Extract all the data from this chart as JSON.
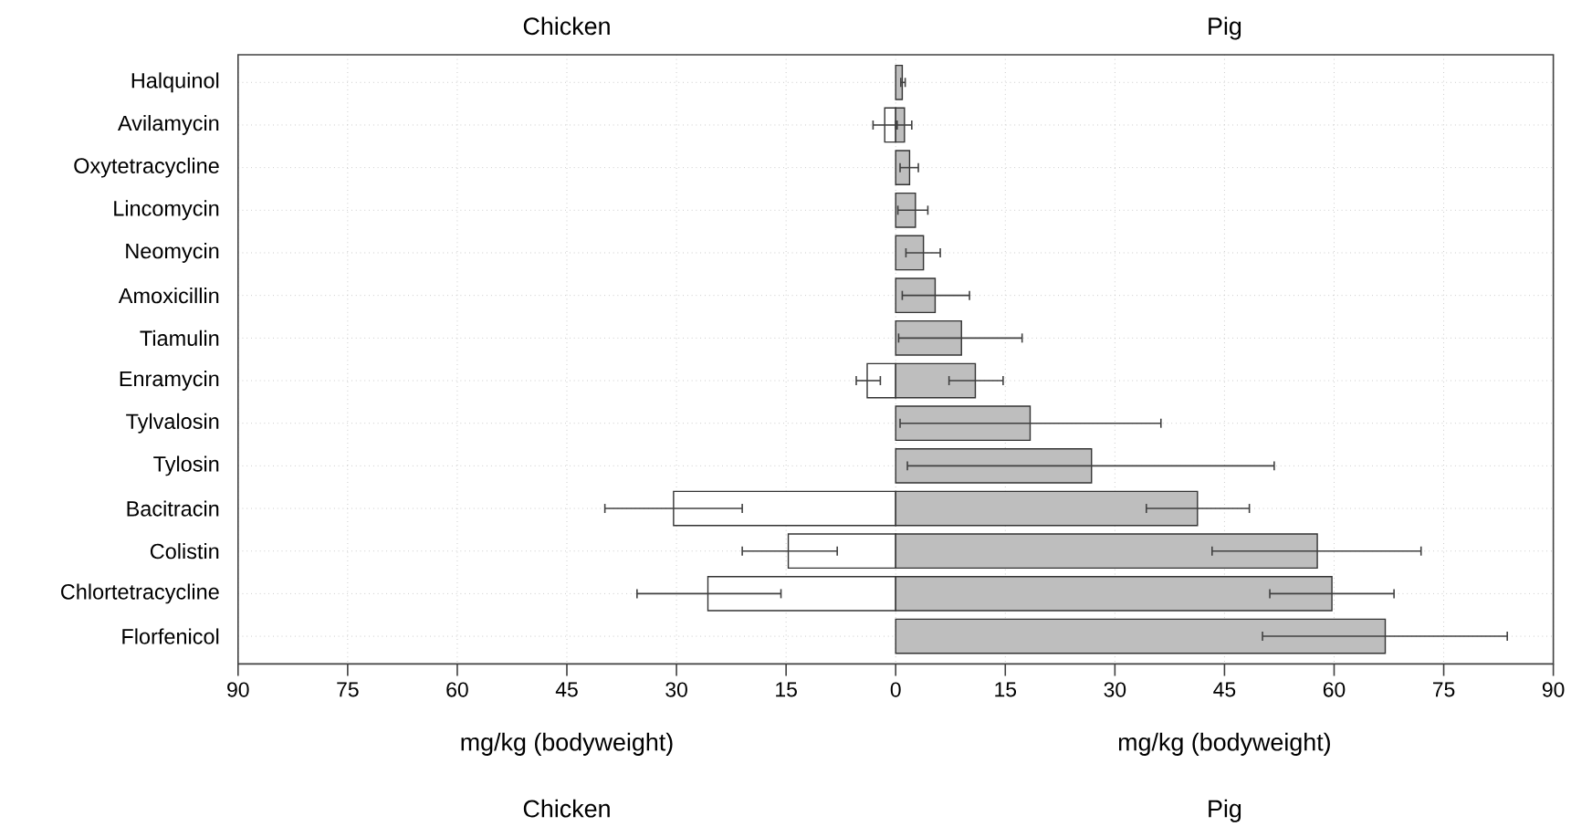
{
  "chart_data": {
    "type": "bar",
    "orientation": "horizontal",
    "categories": [
      "Halquinol",
      "Avilamycin",
      "Oxytetracycline",
      "Lincomycin",
      "Neomycin",
      "Amoxicillin",
      "Tiamulin",
      "Enramycin",
      "Tylvalosin",
      "Tylosin",
      "Bacitracin",
      "Colistin",
      "Chlortetracycline",
      "Florfenicol"
    ],
    "series": [
      {
        "color": "#ffffff",
        "values": [
          null,
          -1.5,
          null,
          null,
          null,
          null,
          null,
          -3.9,
          null,
          null,
          -30.4,
          -14.7,
          -25.7,
          null
        ],
        "errors": [
          null,
          [
            -3.1,
            0
          ],
          null,
          null,
          null,
          null,
          null,
          [
            -5.4,
            -2.1
          ],
          null,
          null,
          [
            -39.8,
            -21.0
          ],
          [
            -21.0,
            -8.0
          ],
          [
            -35.4,
            -15.7
          ],
          null
        ]
      },
      {
        "color": "#bebebe",
        "values": [
          0.9,
          1.2,
          1.9,
          2.7,
          3.8,
          5.4,
          9.0,
          10.9,
          18.4,
          26.8,
          41.3,
          57.7,
          59.7,
          67.0
        ],
        "errors": [
          [
            0.7,
            1.3
          ],
          [
            0.2,
            2.2
          ],
          [
            0.6,
            3.1
          ],
          [
            0.3,
            4.4
          ],
          [
            1.4,
            6.1
          ],
          [
            0.9,
            10.1
          ],
          [
            0.4,
            17.3
          ],
          [
            7.3,
            14.7
          ],
          [
            0.6,
            36.3
          ],
          [
            1.6,
            51.8
          ],
          [
            34.3,
            48.4
          ],
          [
            43.3,
            71.9
          ],
          [
            51.2,
            68.2
          ],
          [
            50.2,
            83.7
          ]
        ]
      }
    ],
    "xlabel": "mg/kg (bodyweight)",
    "xlim": [
      -90,
      90
    ],
    "xticks": [
      {
        "value": -90,
        "label": "90"
      },
      {
        "value": -75,
        "label": "75"
      },
      {
        "value": -60,
        "label": "60"
      },
      {
        "value": -45,
        "label": "45"
      },
      {
        "value": -30,
        "label": "30"
      },
      {
        "value": -15,
        "label": "15"
      },
      0,
      15,
      30,
      45,
      60,
      75,
      90
    ],
    "grid": true,
    "annotations": [
      "Chicken",
      "Pig",
      "Chicken",
      "Pig"
    ]
  }
}
